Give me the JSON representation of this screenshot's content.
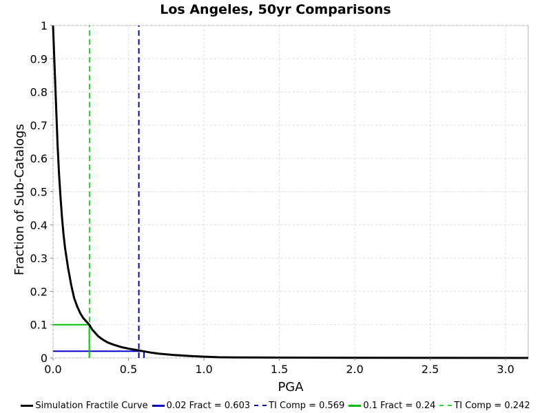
{
  "chart_data": {
    "type": "line",
    "title": "Los Angeles, 50yr Comparisons",
    "xlabel": "PGA",
    "ylabel": "Fraction of Sub-Catalogs",
    "xlim": [
      0,
      3.15
    ],
    "ylim": [
      0,
      1
    ],
    "xticks": [
      "0.0",
      "0.5",
      "1.0",
      "1.5",
      "2.0",
      "2.5",
      "3.0"
    ],
    "xtick_values": [
      0,
      0.5,
      1.0,
      1.5,
      2.0,
      2.5,
      3.0
    ],
    "yticks": [
      "0",
      "0.1",
      "0.2",
      "0.3",
      "0.4",
      "0.5",
      "0.6",
      "0.7",
      "0.8",
      "0.9",
      "1"
    ],
    "ytick_values": [
      0,
      0.1,
      0.2,
      0.3,
      0.4,
      0.5,
      0.6,
      0.7,
      0.8,
      0.9,
      1
    ],
    "grid": true,
    "legend_position": "bottom",
    "series": [
      {
        "name": "Simulation Fractile Curve",
        "color": "#000000",
        "style": "solid",
        "x": [
          0.0,
          0.01,
          0.02,
          0.03,
          0.04,
          0.05,
          0.06,
          0.07,
          0.08,
          0.1,
          0.12,
          0.14,
          0.16,
          0.18,
          0.2,
          0.22,
          0.24,
          0.26,
          0.28,
          0.3,
          0.33,
          0.36,
          0.4,
          0.45,
          0.5,
          0.55,
          0.6,
          0.65,
          0.7,
          0.8,
          0.9,
          1.0,
          1.1,
          1.2,
          1.5,
          2.0,
          2.5,
          3.15
        ],
        "y": [
          1.0,
          0.88,
          0.76,
          0.64,
          0.55,
          0.48,
          0.42,
          0.37,
          0.33,
          0.27,
          0.22,
          0.18,
          0.155,
          0.135,
          0.12,
          0.11,
          0.1,
          0.085,
          0.075,
          0.065,
          0.055,
          0.047,
          0.04,
          0.033,
          0.028,
          0.024,
          0.02,
          0.016,
          0.013,
          0.009,
          0.006,
          0.004,
          0.002,
          0.0015,
          0.001,
          0.0005,
          0.0002,
          0.0
        ]
      },
      {
        "name": "0.02 Fract = 0.603",
        "color": "#0000cc",
        "style": "solid",
        "x": [
          0,
          0.603,
          0.603
        ],
        "y": [
          0.02,
          0.02,
          0
        ]
      },
      {
        "name": "TI Comp = 0.569",
        "color": "#0000cc",
        "style": "dashed",
        "x": [
          0.569,
          0.569
        ],
        "y": [
          0,
          1
        ]
      },
      {
        "name": "0.1 Fract = 0.24",
        "color": "#00bb00",
        "style": "solid",
        "x": [
          0,
          0.24,
          0.24
        ],
        "y": [
          0.1,
          0.1,
          0
        ]
      },
      {
        "name": "TI Comp = 0.242",
        "color": "#22dd22",
        "style": "dashed",
        "x": [
          0.242,
          0.242
        ],
        "y": [
          0,
          1
        ]
      }
    ]
  }
}
